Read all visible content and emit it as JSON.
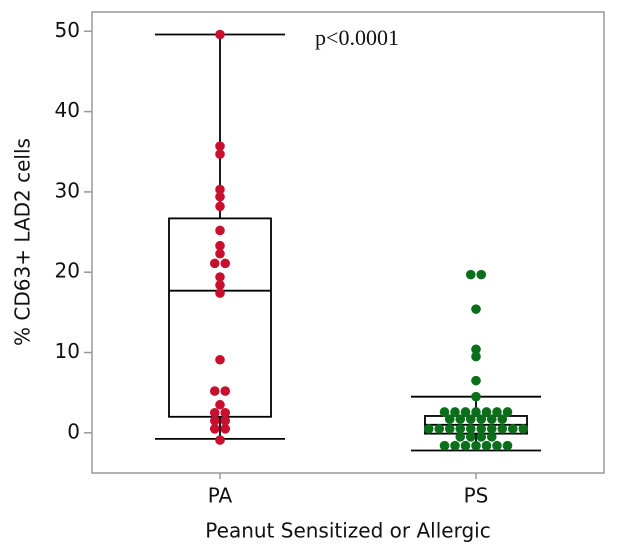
{
  "chart_data": {
    "type": "box",
    "y_label": "% CD63+ LAD2 cells",
    "x_label": "Peanut Sensitized or Allergic",
    "annotation": "p<0.0001",
    "ylim": [
      -5,
      52.4
    ],
    "yticks": [
      0,
      10,
      20,
      30,
      40,
      50
    ],
    "series": [
      {
        "name": "PA",
        "color": "#c8102e",
        "whisker_low": -0.75,
        "q1": 2.0,
        "median": 17.7,
        "q3": 26.7,
        "whisker_high": 49.6,
        "values": [
          49.6,
          35.7,
          34.7,
          30.3,
          29.4,
          28.2,
          25.2,
          23.3,
          22.3,
          21.1,
          21.1,
          19.4,
          18.4,
          17.4,
          9.1,
          5.2,
          5.2,
          3.5,
          2.5,
          2.5,
          1.5,
          1.5,
          0.5,
          0.5,
          -0.9
        ]
      },
      {
        "name": "PS",
        "color": "#0a6e1a",
        "whisker_low": -2.2,
        "q1": -0.1,
        "median": 1.0,
        "q3": 2.1,
        "whisker_high": 4.5,
        "values": [
          19.7,
          19.7,
          15.4,
          10.4,
          9.5,
          6.5,
          4.5,
          2.6,
          2.6,
          2.6,
          2.6,
          2.6,
          2.6,
          2.6,
          1.7,
          1.7,
          1.7,
          1.7,
          1.7,
          1.7,
          0.5,
          0.5,
          0.5,
          0.5,
          0.5,
          0.5,
          0.5,
          0.5,
          0.5,
          0.5,
          -0.5,
          -0.5,
          -0.5,
          -0.5,
          -1.6,
          -1.6,
          -1.6,
          -1.6,
          -1.6,
          -1.6,
          -1.6
        ]
      }
    ]
  }
}
